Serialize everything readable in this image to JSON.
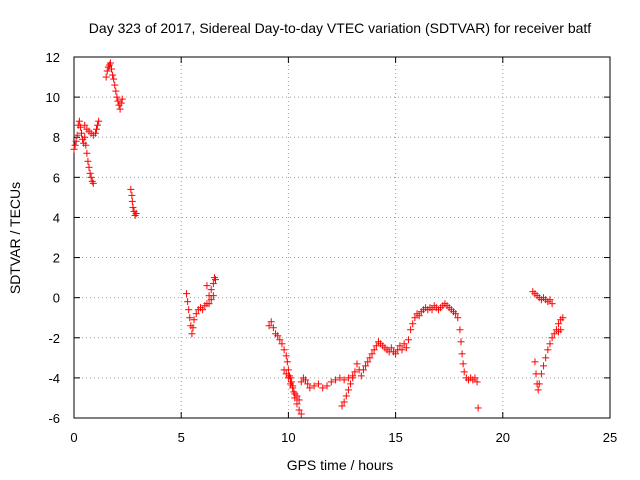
{
  "chart_data": {
    "type": "scatter",
    "title": "Day 323 of 2017, Sidereal Day-to-day VTEC variation (SDTVAR) for receiver batf",
    "xlabel": "GPS time / hours",
    "ylabel": "SDTVAR / TECUs",
    "xlim": [
      0,
      25
    ],
    "ylim": [
      -6,
      12
    ],
    "xticks": [
      0,
      5,
      10,
      15,
      20,
      25
    ],
    "yticks": [
      -6,
      -4,
      -2,
      0,
      2,
      4,
      6,
      8,
      10,
      12
    ],
    "grid": true,
    "marker": "+",
    "marker_color": "#ff0000",
    "segments": [
      {
        "name": "seg1",
        "points": [
          [
            0.0,
            7.4
          ],
          [
            0.05,
            7.6
          ],
          [
            0.1,
            7.8
          ],
          [
            0.15,
            8.1
          ],
          [
            0.2,
            8.6
          ],
          [
            0.25,
            8.8
          ],
          [
            0.3,
            8.5
          ],
          [
            0.35,
            8.2
          ],
          [
            0.4,
            7.9
          ],
          [
            0.45,
            7.7
          ],
          [
            0.5,
            8.0
          ],
          [
            0.55,
            7.6
          ],
          [
            0.6,
            7.2
          ],
          [
            0.65,
            6.8
          ],
          [
            0.7,
            6.5
          ],
          [
            0.75,
            6.2
          ],
          [
            0.8,
            6.0
          ],
          [
            0.85,
            5.8
          ],
          [
            0.9,
            5.7
          ],
          [
            0.5,
            8.6
          ],
          [
            0.6,
            8.4
          ],
          [
            0.7,
            8.3
          ],
          [
            0.8,
            8.2
          ],
          [
            0.9,
            8.1
          ],
          [
            1.0,
            8.2
          ],
          [
            1.05,
            8.4
          ],
          [
            1.1,
            8.6
          ],
          [
            1.15,
            8.8
          ]
        ]
      },
      {
        "name": "seg2",
        "points": [
          [
            1.5,
            11.0
          ],
          [
            1.55,
            11.3
          ],
          [
            1.6,
            11.5
          ],
          [
            1.65,
            11.6
          ],
          [
            1.7,
            11.7
          ],
          [
            1.75,
            11.4
          ],
          [
            1.8,
            11.1
          ],
          [
            1.85,
            10.9
          ],
          [
            1.9,
            10.6
          ],
          [
            1.95,
            10.3
          ],
          [
            2.0,
            10.0
          ],
          [
            2.05,
            9.8
          ],
          [
            2.1,
            9.6
          ],
          [
            2.15,
            9.4
          ],
          [
            2.2,
            9.7
          ],
          [
            2.25,
            9.9
          ]
        ]
      },
      {
        "name": "seg3",
        "points": [
          [
            2.65,
            5.4
          ],
          [
            2.7,
            5.1
          ],
          [
            2.72,
            4.8
          ],
          [
            2.75,
            4.5
          ],
          [
            2.8,
            4.3
          ],
          [
            2.85,
            4.1
          ],
          [
            2.9,
            4.2
          ]
        ]
      },
      {
        "name": "seg4",
        "points": [
          [
            5.25,
            0.2
          ],
          [
            5.3,
            -0.2
          ],
          [
            5.35,
            -0.6
          ],
          [
            5.4,
            -1.0
          ],
          [
            5.45,
            -1.4
          ],
          [
            5.5,
            -1.8
          ],
          [
            5.55,
            -1.5
          ],
          [
            5.6,
            -1.1
          ],
          [
            5.7,
            -0.8
          ],
          [
            5.8,
            -0.6
          ],
          [
            5.9,
            -0.5
          ],
          [
            6.0,
            -0.6
          ],
          [
            6.1,
            -0.4
          ],
          [
            6.2,
            -0.3
          ],
          [
            6.3,
            0.1
          ],
          [
            6.4,
            0.4
          ],
          [
            6.5,
            0.7
          ],
          [
            6.55,
            1.0
          ],
          [
            6.6,
            0.9
          ],
          [
            6.5,
            0.1
          ],
          [
            6.4,
            -0.1
          ],
          [
            6.3,
            -0.3
          ],
          [
            6.2,
            0.6
          ]
        ]
      },
      {
        "name": "seg5",
        "points": [
          [
            9.1,
            -1.4
          ],
          [
            9.2,
            -1.2
          ],
          [
            9.3,
            -1.5
          ],
          [
            9.4,
            -1.8
          ],
          [
            9.5,
            -1.9
          ],
          [
            9.6,
            -2.1
          ],
          [
            9.7,
            -2.3
          ],
          [
            9.8,
            -2.6
          ],
          [
            9.9,
            -2.9
          ],
          [
            9.95,
            -3.2
          ],
          [
            10.0,
            -3.6
          ],
          [
            10.05,
            -3.9
          ],
          [
            10.1,
            -4.0
          ],
          [
            10.15,
            -4.2
          ],
          [
            10.2,
            -4.4
          ],
          [
            10.25,
            -4.7
          ],
          [
            10.3,
            -5.0
          ],
          [
            10.4,
            -5.3
          ],
          [
            10.5,
            -5.6
          ],
          [
            10.6,
            -5.8
          ],
          [
            9.8,
            -3.6
          ],
          [
            9.9,
            -3.8
          ],
          [
            10.0,
            -4.0
          ],
          [
            10.1,
            -4.3
          ],
          [
            10.2,
            -4.5
          ],
          [
            10.3,
            -4.8
          ],
          [
            10.4,
            -4.9
          ],
          [
            10.5,
            -5.1
          ],
          [
            10.6,
            -4.2
          ],
          [
            10.7,
            -4.0
          ],
          [
            10.8,
            -4.1
          ],
          [
            10.9,
            -4.3
          ],
          [
            11.0,
            -4.5
          ],
          [
            11.2,
            -4.4
          ],
          [
            11.4,
            -4.3
          ],
          [
            11.6,
            -4.5
          ],
          [
            11.8,
            -4.4
          ],
          [
            12.0,
            -4.2
          ],
          [
            12.2,
            -4.1
          ],
          [
            12.4,
            -4.0
          ],
          [
            12.6,
            -4.1
          ],
          [
            12.8,
            -4.0
          ],
          [
            13.0,
            -3.9
          ]
        ]
      },
      {
        "name": "seg6",
        "points": [
          [
            12.5,
            -5.4
          ],
          [
            12.6,
            -5.2
          ],
          [
            12.7,
            -4.9
          ],
          [
            12.8,
            -4.6
          ],
          [
            12.9,
            -4.3
          ],
          [
            13.0,
            -4.0
          ],
          [
            13.1,
            -3.7
          ],
          [
            13.2,
            -3.3
          ],
          [
            13.3,
            -3.6
          ],
          [
            13.4,
            -3.9
          ],
          [
            13.5,
            -3.6
          ],
          [
            13.6,
            -3.4
          ],
          [
            13.7,
            -3.2
          ],
          [
            13.8,
            -3.0
          ],
          [
            13.9,
            -2.8
          ],
          [
            14.0,
            -2.6
          ],
          [
            14.1,
            -2.4
          ],
          [
            14.2,
            -2.2
          ],
          [
            14.3,
            -2.3
          ],
          [
            14.4,
            -2.4
          ],
          [
            14.5,
            -2.5
          ],
          [
            14.6,
            -2.6
          ],
          [
            14.7,
            -2.7
          ],
          [
            14.8,
            -2.5
          ],
          [
            14.9,
            -2.7
          ],
          [
            15.0,
            -2.8
          ],
          [
            15.1,
            -2.6
          ],
          [
            15.2,
            -2.4
          ],
          [
            15.3,
            -2.6
          ],
          [
            15.4,
            -2.3
          ],
          [
            15.5,
            -2.5
          ],
          [
            15.6,
            -2.1
          ],
          [
            15.7,
            -1.6
          ],
          [
            15.8,
            -1.3
          ],
          [
            15.9,
            -1.0
          ],
          [
            16.0,
            -0.8
          ],
          [
            16.1,
            -0.9
          ],
          [
            16.2,
            -0.7
          ],
          [
            16.3,
            -0.6
          ],
          [
            16.4,
            -0.5
          ],
          [
            16.5,
            -0.6
          ],
          [
            16.6,
            -0.5
          ],
          [
            16.7,
            -0.6
          ],
          [
            16.8,
            -0.4
          ],
          [
            16.9,
            -0.5
          ],
          [
            17.0,
            -0.6
          ],
          [
            17.1,
            -0.5
          ],
          [
            17.2,
            -0.4
          ],
          [
            17.3,
            -0.3
          ],
          [
            17.4,
            -0.4
          ],
          [
            17.5,
            -0.5
          ],
          [
            17.6,
            -0.6
          ],
          [
            17.7,
            -0.7
          ],
          [
            17.8,
            -0.8
          ],
          [
            17.9,
            -1.0
          ],
          [
            18.0,
            -1.6
          ],
          [
            18.05,
            -2.2
          ],
          [
            18.1,
            -2.8
          ],
          [
            18.15,
            -3.3
          ],
          [
            18.2,
            -3.7
          ],
          [
            18.3,
            -4.0
          ],
          [
            18.4,
            -4.1
          ],
          [
            18.5,
            -4.0
          ],
          [
            18.6,
            -4.1
          ],
          [
            18.7,
            -4.0
          ],
          [
            18.8,
            -4.2
          ],
          [
            18.85,
            -5.5
          ]
        ]
      },
      {
        "name": "seg7",
        "points": [
          [
            21.4,
            0.3
          ],
          [
            21.5,
            0.2
          ],
          [
            21.6,
            0.1
          ],
          [
            21.7,
            0.0
          ],
          [
            21.8,
            -0.1
          ],
          [
            21.9,
            0.0
          ],
          [
            22.0,
            -0.1
          ],
          [
            22.1,
            -0.2
          ],
          [
            22.2,
            -0.1
          ],
          [
            22.3,
            -0.3
          ],
          [
            21.5,
            -3.2
          ],
          [
            21.55,
            -3.8
          ],
          [
            21.6,
            -4.3
          ],
          [
            21.65,
            -4.6
          ],
          [
            21.7,
            -4.3
          ],
          [
            21.8,
            -3.8
          ],
          [
            21.9,
            -3.4
          ],
          [
            22.0,
            -3.0
          ],
          [
            22.1,
            -2.6
          ],
          [
            22.2,
            -2.3
          ],
          [
            22.3,
            -2.0
          ],
          [
            22.4,
            -1.8
          ],
          [
            22.5,
            -1.6
          ],
          [
            22.6,
            -1.3
          ],
          [
            22.7,
            -1.1
          ],
          [
            22.8,
            -1.0
          ],
          [
            22.6,
            -1.7
          ],
          [
            22.7,
            -1.6
          ]
        ]
      }
    ]
  }
}
